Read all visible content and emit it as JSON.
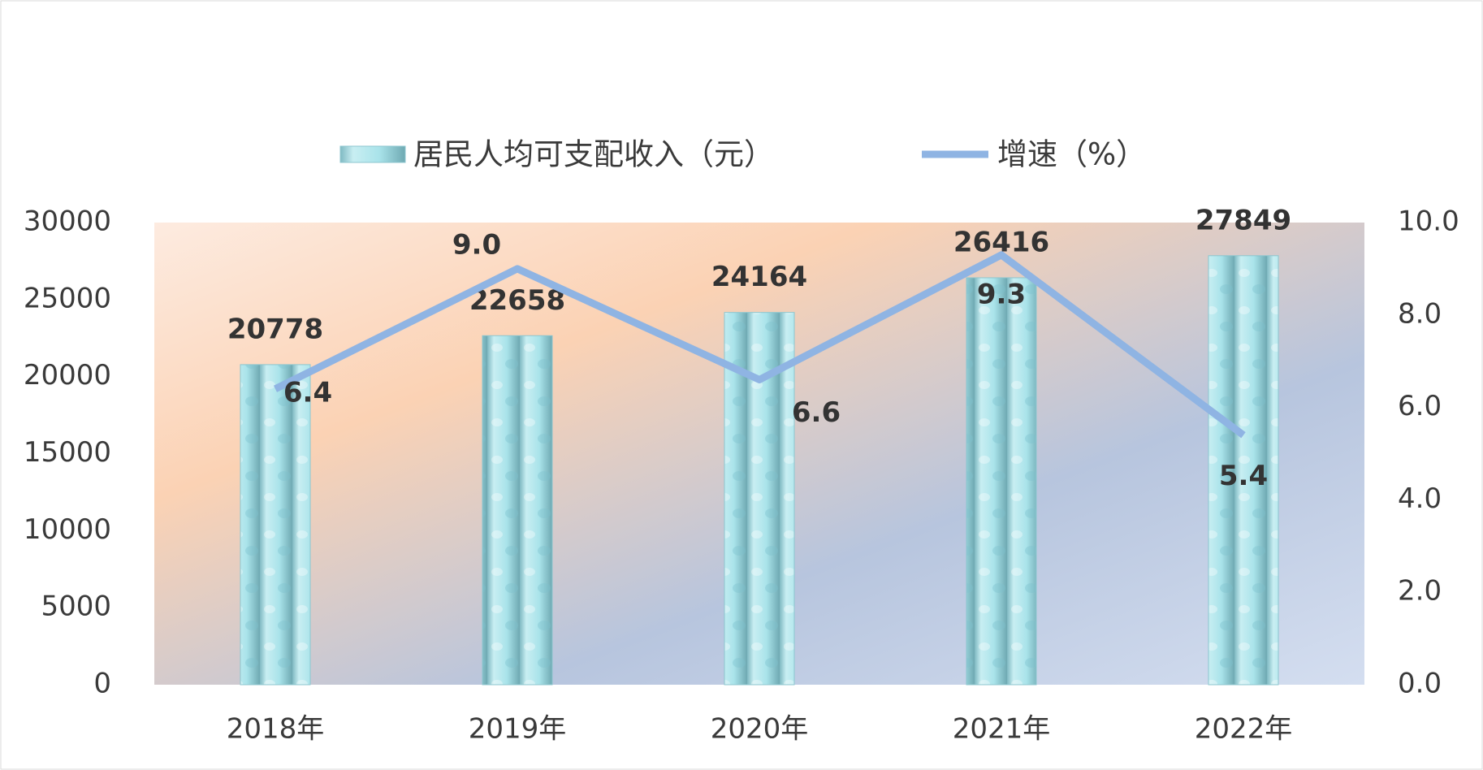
{
  "chart_data": {
    "type": "bar-line",
    "categories": [
      "2018年",
      "2019年",
      "2020年",
      "2021年",
      "2022年"
    ],
    "series": [
      {
        "name": "居民人均可支配收入（元）",
        "type": "bar",
        "color": "#9fdde6",
        "values": [
          20778,
          22658,
          24164,
          26416,
          27849
        ]
      },
      {
        "name": "增速（%）",
        "type": "line",
        "axis": "y2",
        "color": "#8fb4e3",
        "values": [
          6.4,
          9.0,
          6.6,
          9.3,
          5.4
        ],
        "value_labels": [
          "6.4",
          "9.0",
          "6.6",
          "9.3",
          "5.4"
        ]
      }
    ],
    "ylim": [
      0,
      30000
    ],
    "yticks": [
      0,
      5000,
      10000,
      15000,
      20000,
      25000,
      30000
    ],
    "y2lim": [
      0,
      10
    ],
    "y2ticks": [
      {
        "value": 0,
        "label": "0.0"
      },
      {
        "value": 2,
        "label": "2.0"
      },
      {
        "value": 4,
        "label": "4.0"
      },
      {
        "value": 6,
        "label": "6.0"
      },
      {
        "value": 8,
        "label": "8.0"
      },
      {
        "value": 10,
        "label": "10.0"
      }
    ],
    "legend": "top"
  }
}
